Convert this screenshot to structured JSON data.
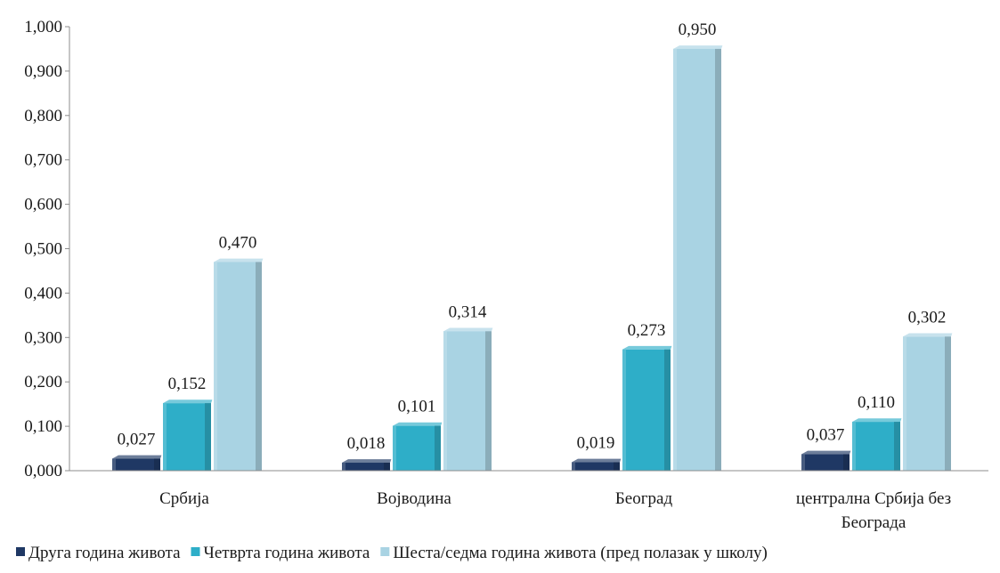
{
  "chart_data": {
    "type": "bar",
    "categories": [
      "Србија",
      "Војводина",
      "Београд",
      "централна Србија без Београда"
    ],
    "category_lines": [
      [
        "Србија"
      ],
      [
        "Војводина"
      ],
      [
        "Београд"
      ],
      [
        "централна Србија без",
        "Београда"
      ]
    ],
    "series": [
      {
        "name": "Друга година живота",
        "values": [
          0.027,
          0.018,
          0.019,
          0.037
        ],
        "labels": [
          "0,027",
          "0,018",
          "0,019",
          "0,037"
        ],
        "color": "#1f3864"
      },
      {
        "name": "Четврта година живота",
        "values": [
          0.152,
          0.101,
          0.273,
          0.11
        ],
        "labels": [
          "0,152",
          "0,101",
          "0,273",
          "0,110"
        ],
        "color": "#2eaec8"
      },
      {
        "name": "Шеста/седма година живота (пред полазак у школу)",
        "values": [
          0.47,
          0.314,
          0.95,
          0.302
        ],
        "labels": [
          "0,470",
          "0,314",
          "0,950",
          "0,302"
        ],
        "color": "#a9d3e3"
      }
    ],
    "yticks": [
      "0,000",
      "0,100",
      "0,200",
      "0,300",
      "0,400",
      "0,500",
      "0,600",
      "0,700",
      "0,800",
      "0,900",
      "1,000"
    ],
    "ylim": [
      0,
      1.0
    ],
    "grid": false,
    "legend_position": "bottom",
    "title": "",
    "xlabel": "",
    "ylabel": ""
  }
}
